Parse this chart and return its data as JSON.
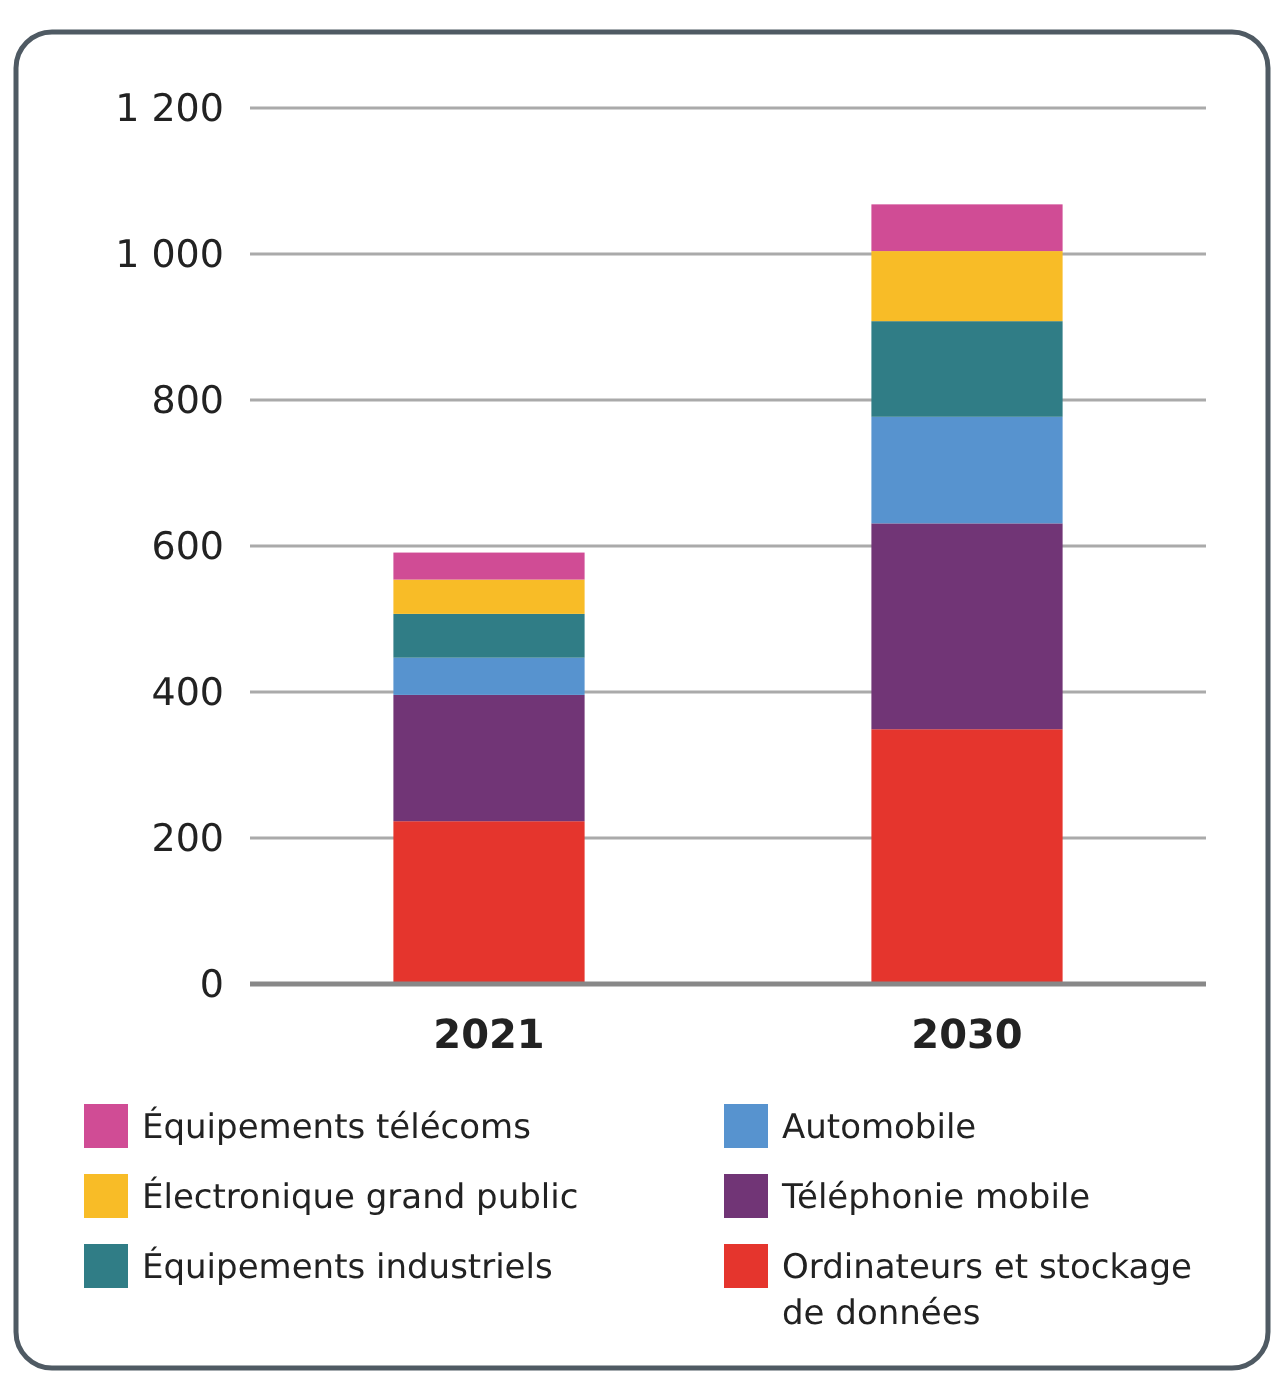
{
  "chart_data": {
    "type": "bar",
    "stacked": true,
    "categories": [
      "2021",
      "2030"
    ],
    "series": [
      {
        "name": "Ordinateurs et stockage de données",
        "color": "#e5352d",
        "values": [
          223,
          349
        ]
      },
      {
        "name": "Téléphonie mobile",
        "color": "#713576",
        "values": [
          173,
          282
        ]
      },
      {
        "name": "Automobile",
        "color": "#5793cf",
        "values": [
          51,
          146
        ]
      },
      {
        "name": "Équipements industriels",
        "color": "#307d86",
        "values": [
          60,
          131
        ]
      },
      {
        "name": "Électronique grand public",
        "color": "#f8bc27",
        "values": [
          47,
          96
        ]
      },
      {
        "name": "Équipements télécoms",
        "color": "#d04c95",
        "values": [
          37,
          64
        ]
      }
    ],
    "ylim": [
      0,
      1200
    ],
    "yticks": [
      0,
      200,
      400,
      600,
      800,
      {
        "value": 1000,
        "label": "1 000"
      },
      {
        "value": 1200,
        "label": "1 200"
      }
    ],
    "grid": "y",
    "legend": "bottom"
  }
}
